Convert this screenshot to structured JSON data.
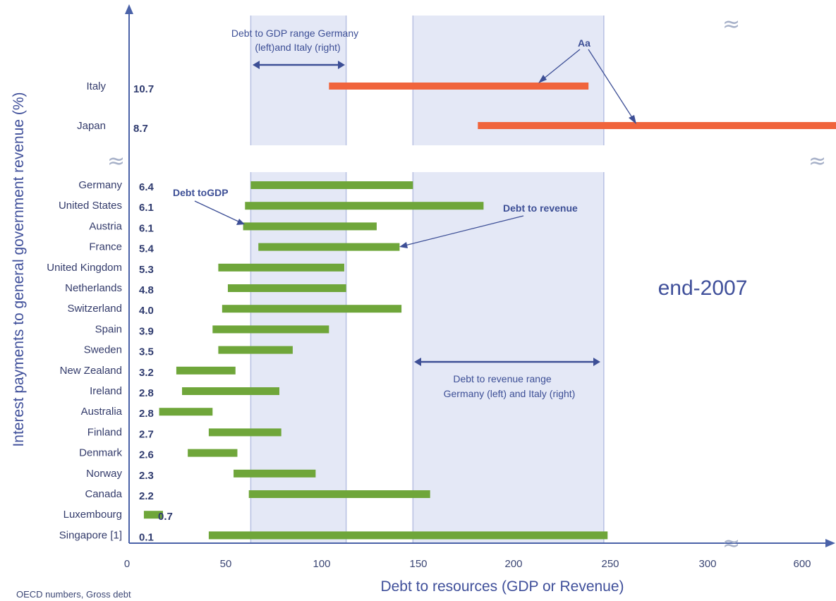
{
  "chart_data": {
    "type": "bar",
    "subtype": "floating-range",
    "title": "end-2007",
    "xlabel": "Debt to resources (GDP or Revenue)",
    "ylabel": "Interest payments to general government revenue (%)",
    "x_ticks": [
      "0",
      "50",
      "100",
      "150",
      "200",
      "250",
      "300",
      "600"
    ],
    "xlim": [
      0,
      600
    ],
    "x_axis_note": "axis is broken between 300 and 600",
    "footnote": "OECD numbers, Gross debt",
    "top_series": {
      "color": "#f0643c",
      "rows": [
        {
          "country": "Italy",
          "interest": "10.7",
          "start": 104,
          "end": 240
        },
        {
          "country": "Japan",
          "interest": "8.7",
          "start": 182,
          "end": 588
        }
      ]
    },
    "main_series": {
      "color": "#6fa63a",
      "rows": [
        {
          "country": "Germany",
          "interest": "6.4",
          "start": 63,
          "end": 148
        },
        {
          "country": "United States",
          "interest": "6.1",
          "start": 60,
          "end": 185
        },
        {
          "country": "Austria",
          "interest": "6.1",
          "start": 59,
          "end": 129
        },
        {
          "country": "France",
          "interest": "5.4",
          "start": 67,
          "end": 141
        },
        {
          "country": "United Kingdom",
          "interest": "5.3",
          "start": 46,
          "end": 112
        },
        {
          "country": "Netherlands",
          "interest": "4.8",
          "start": 51,
          "end": 113
        },
        {
          "country": "Switzerland",
          "interest": "4.0",
          "start": 48,
          "end": 142
        },
        {
          "country": "Spain",
          "interest": "3.9",
          "start": 43,
          "end": 104
        },
        {
          "country": "Sweden",
          "interest": "3.5",
          "start": 46,
          "end": 85
        },
        {
          "country": "New Zealand",
          "interest": "3.2",
          "start": 24,
          "end": 55
        },
        {
          "country": "Ireland",
          "interest": "2.8",
          "start": 27,
          "end": 78
        },
        {
          "country": "Australia",
          "interest": "2.8",
          "start": 15,
          "end": 43
        },
        {
          "country": "Finland",
          "interest": "2.7",
          "start": 41,
          "end": 79
        },
        {
          "country": "Denmark",
          "interest": "2.6",
          "start": 30,
          "end": 56
        },
        {
          "country": "Norway",
          "interest": "2.3",
          "start": 54,
          "end": 97
        },
        {
          "country": "Canada",
          "interest": "2.2",
          "start": 62,
          "end": 157
        },
        {
          "country": "Luxembourg",
          "interest": "0.7",
          "start": 7,
          "end": 17
        },
        {
          "country": "Singapore [1]",
          "interest": "0.1",
          "start": 41,
          "end": 250
        }
      ]
    },
    "shaded_bands": [
      {
        "from": 63,
        "to": 113
      },
      {
        "from": 148,
        "to": 248
      }
    ],
    "annotations": {
      "gdp_range": "Debt to GDP range Germany (left)and Italy (right)",
      "rev_range": "Debt to revenue range Germany (left) and Italy (right)",
      "debt_to_gdp": "Debt toGDP",
      "debt_to_revenue": "Debt to revenue",
      "rating": "Aa"
    }
  }
}
